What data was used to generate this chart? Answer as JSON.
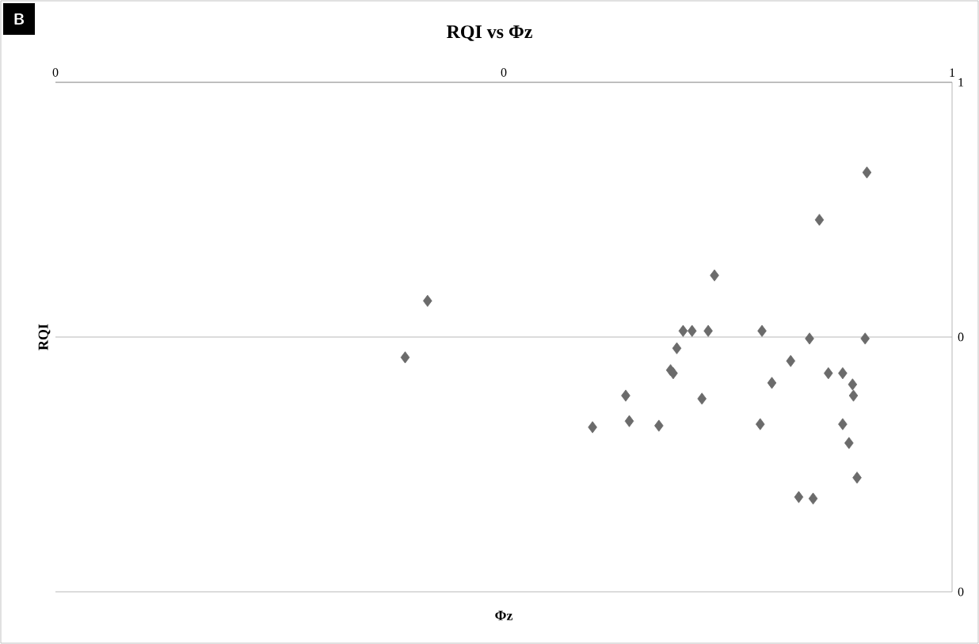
{
  "chart_data": {
    "type": "scatter",
    "title": "RQI vs Φz",
    "xlabel": "Φz",
    "ylabel": "RQI",
    "annotations": [
      "B"
    ],
    "x": [
      0.39,
      0.415,
      0.599,
      0.636,
      0.64,
      0.673,
      0.686,
      0.689,
      0.693,
      0.7,
      0.71,
      0.721,
      0.728,
      0.735,
      0.788,
      0.786,
      0.799,
      0.82,
      0.829,
      0.841,
      0.845,
      0.852,
      0.862,
      0.878,
      0.878,
      0.885,
      0.889,
      0.89,
      0.894,
      0.903,
      0.905
    ],
    "series": [
      {
        "color": "#6b6b6b",
        "values": [
          0.46,
          0.571,
          0.323,
          0.385,
          0.335,
          0.326,
          0.435,
          0.429,
          0.478,
          0.512,
          0.512,
          0.379,
          0.512,
          0.621,
          0.512,
          0.329,
          0.41,
          0.453,
          0.186,
          0.497,
          0.183,
          0.73,
          0.429,
          0.429,
          0.329,
          0.292,
          0.407,
          0.385,
          0.224,
          0.497,
          0.823
        ]
      }
    ],
    "xlim": [
      0,
      1
    ],
    "ylim": [
      0,
      1
    ],
    "xticks": [
      {
        "value": 0,
        "label": "0"
      },
      {
        "value": 0.5,
        "label": "0"
      },
      {
        "value": 1,
        "label": "1"
      }
    ],
    "yticks": [
      {
        "value": 0,
        "label": "0"
      },
      {
        "value": 0.5,
        "label": "0"
      },
      {
        "value": 1,
        "label": "1"
      }
    ],
    "grid": "y",
    "marker": "diamond"
  }
}
